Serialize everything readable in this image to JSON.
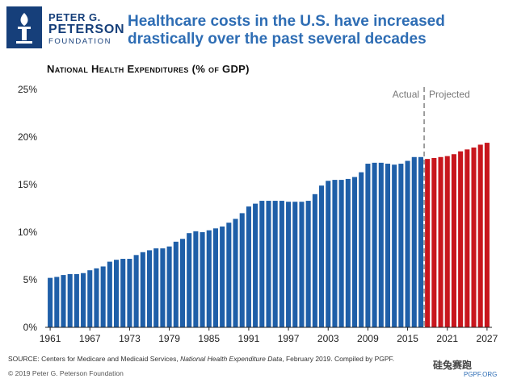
{
  "logo": {
    "line1": "PETER G.",
    "line2": "PETERSON",
    "line3": "FOUNDATION"
  },
  "header": {
    "title": "Healthcare costs in the U.S. have increased drastically over the past several decades"
  },
  "chart_data": {
    "type": "bar",
    "title": "National Health Expenditures (% of GDP)",
    "xlabel": "",
    "ylabel": "",
    "ylim": [
      0,
      25
    ],
    "yticks": [
      "0%",
      "5%",
      "10%",
      "15%",
      "20%",
      "25%"
    ],
    "xtick_labels": [
      "1961",
      "1967",
      "1973",
      "1979",
      "1985",
      "1991",
      "1997",
      "2003",
      "2009",
      "2015",
      "2021",
      "2027"
    ],
    "grid": false,
    "annotations": [
      "Actual",
      "Projected"
    ],
    "series": [
      {
        "name": "Actual",
        "color": "#1f5fa8",
        "x": [
          1961,
          1962,
          1963,
          1964,
          1965,
          1966,
          1967,
          1968,
          1969,
          1970,
          1971,
          1972,
          1973,
          1974,
          1975,
          1976,
          1977,
          1978,
          1979,
          1980,
          1981,
          1982,
          1983,
          1984,
          1985,
          1986,
          1987,
          1988,
          1989,
          1990,
          1991,
          1992,
          1993,
          1994,
          1995,
          1996,
          1997,
          1998,
          1999,
          2000,
          2001,
          2002,
          2003,
          2004,
          2005,
          2006,
          2007,
          2008,
          2009,
          2010,
          2011,
          2012,
          2013,
          2014,
          2015,
          2016,
          2017
        ],
        "values": [
          5.2,
          5.3,
          5.5,
          5.6,
          5.6,
          5.7,
          6.0,
          6.2,
          6.4,
          6.9,
          7.1,
          7.2,
          7.2,
          7.6,
          7.9,
          8.1,
          8.3,
          8.3,
          8.5,
          9.0,
          9.3,
          9.9,
          10.1,
          10.0,
          10.2,
          10.4,
          10.6,
          11.0,
          11.4,
          12.0,
          12.7,
          13.0,
          13.3,
          13.3,
          13.3,
          13.3,
          13.2,
          13.2,
          13.2,
          13.3,
          14.0,
          14.9,
          15.4,
          15.5,
          15.5,
          15.6,
          15.8,
          16.3,
          17.2,
          17.3,
          17.3,
          17.2,
          17.1,
          17.2,
          17.5,
          17.9,
          17.9
        ]
      },
      {
        "name": "Projected",
        "color": "#c8161d",
        "x": [
          2018,
          2019,
          2020,
          2021,
          2022,
          2023,
          2024,
          2025,
          2026,
          2027
        ],
        "values": [
          17.7,
          17.8,
          17.9,
          18.0,
          18.2,
          18.5,
          18.7,
          18.9,
          19.2,
          19.4
        ]
      }
    ]
  },
  "footer": {
    "source_prefix": "SOURCE: Centers for Medicare and Medicaid Services, ",
    "source_italic": "National Health Expenditure Data",
    "source_suffix": ", February 2019. Compiled by PGPF.",
    "copyright": "© 2019 Peter G. Peterson Foundation",
    "watermark": "硅兔赛跑",
    "site": "PGPF.ORG"
  },
  "colors": {
    "brand": "#163f7a",
    "title": "#2e6db4",
    "actual": "#1f5fa8",
    "projected": "#c8161d",
    "divider": "#8a8a8a"
  }
}
